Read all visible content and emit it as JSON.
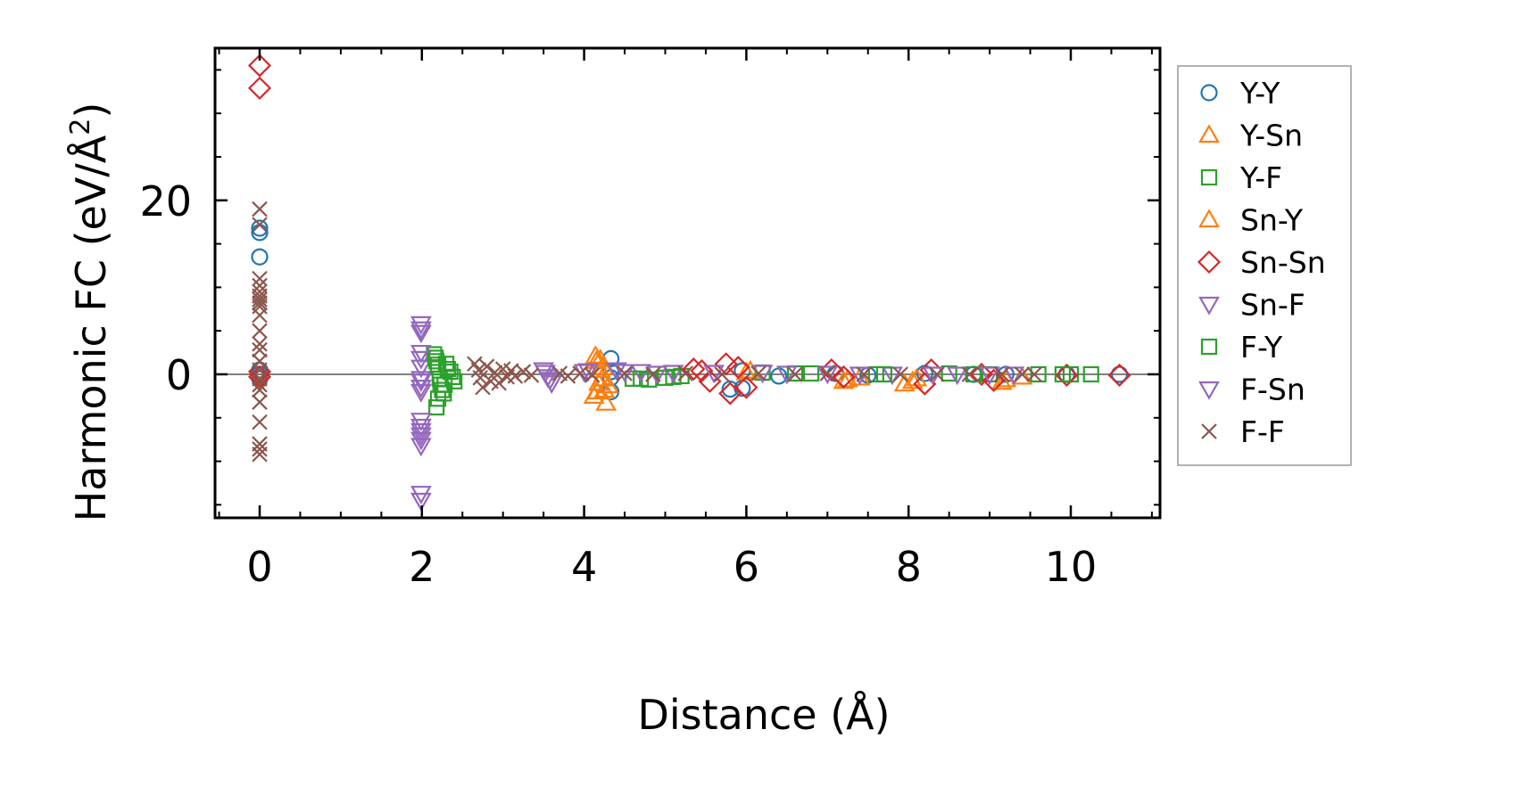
{
  "chart_data": {
    "type": "scatter",
    "title": "",
    "xlabel": "Distance (Å)",
    "ylabel": "Harmonic FC (eV/Å²)",
    "ylabel_parts": {
      "base": "Harmonic FC (eV/Å",
      "sup": "2",
      "close": ")"
    },
    "xlim": [
      -0.55,
      11.1
    ],
    "ylim": [
      -16.5,
      37.5
    ],
    "x_ticks": [
      0,
      2,
      4,
      6,
      8,
      10
    ],
    "x_tick_labels": [
      "0",
      "2",
      "4",
      "6",
      "8",
      "10"
    ],
    "y_ticks": [
      0,
      20
    ],
    "y_tick_labels": [
      "0",
      "20"
    ],
    "zero_line": true,
    "grid": false,
    "legend_position": "outside-right",
    "series": [
      {
        "name": "Y-Y",
        "marker": "circle",
        "filled": false,
        "color": "#1f77b4",
        "points": [
          [
            0,
            16.8
          ],
          [
            0,
            16.3
          ],
          [
            0,
            13.5
          ],
          [
            0,
            0.5
          ],
          [
            0,
            -0.5
          ],
          [
            0,
            0
          ],
          [
            4.33,
            1.8
          ],
          [
            4.33,
            -2.0
          ],
          [
            4.33,
            0.3
          ],
          [
            4.33,
            -0.4
          ],
          [
            5.8,
            -1.7
          ],
          [
            5.95,
            -1.6
          ],
          [
            5.95,
            0.4
          ],
          [
            6.4,
            -0.2
          ],
          [
            7.1,
            0.1
          ],
          [
            7.5,
            -0.1
          ],
          [
            8.2,
            0.1
          ],
          [
            8.8,
            0
          ],
          [
            9.2,
            0
          ],
          [
            9.95,
            0
          ],
          [
            10.6,
            0
          ]
        ]
      },
      {
        "name": "Y-Sn",
        "marker": "triangle-up",
        "filled": false,
        "color": "#ff7f0e",
        "points": [
          [
            4.15,
            1.5
          ],
          [
            4.18,
            -1.0
          ],
          [
            4.12,
            -2.5
          ],
          [
            4.27,
            -3.3
          ],
          [
            4.2,
            0.5
          ],
          [
            4.22,
            -0.5
          ],
          [
            4.25,
            -1.8
          ],
          [
            6.0,
            0.2
          ],
          [
            7.2,
            -0.8
          ],
          [
            7.4,
            -0.4
          ],
          [
            7.95,
            -1.1
          ],
          [
            8.1,
            -0.5
          ],
          [
            9.15,
            -0.9
          ],
          [
            9.4,
            -0.3
          ]
        ]
      },
      {
        "name": "Y-F",
        "marker": "square",
        "filled": false,
        "color": "#2ca02c",
        "points": [
          [
            2.15,
            2.3
          ],
          [
            2.18,
            1.5
          ],
          [
            2.2,
            0.8
          ],
          [
            2.22,
            -0.5
          ],
          [
            2.25,
            -1.8
          ],
          [
            2.2,
            -2.8
          ],
          [
            2.18,
            -3.8
          ],
          [
            2.3,
            1.2
          ],
          [
            2.35,
            0.3
          ],
          [
            2.4,
            -0.8
          ],
          [
            2.28,
            -1.2
          ],
          [
            4.6,
            -0.5
          ],
          [
            4.8,
            -0.6
          ],
          [
            5.0,
            -0.4
          ],
          [
            5.2,
            -0.2
          ],
          [
            6.2,
            0.2
          ],
          [
            6.8,
            0.1
          ],
          [
            7.6,
            0
          ],
          [
            8.5,
            0.1
          ],
          [
            9.0,
            0
          ],
          [
            9.6,
            0
          ],
          [
            10.0,
            0
          ],
          [
            10.25,
            0
          ]
        ]
      },
      {
        "name": "Sn-Y",
        "marker": "triangle-up",
        "filled": false,
        "color": "#ff7f0e",
        "points": [
          [
            4.14,
            2.1
          ],
          [
            4.2,
            1.7
          ],
          [
            4.16,
            -2.0
          ],
          [
            4.24,
            0.8
          ],
          [
            4.3,
            -1.3
          ],
          [
            6.05,
            0.4
          ],
          [
            7.25,
            -0.6
          ],
          [
            8.05,
            -0.8
          ],
          [
            9.2,
            -0.6
          ]
        ]
      },
      {
        "name": "Sn-Sn",
        "marker": "diamond",
        "filled": false,
        "color": "#d62728",
        "points": [
          [
            0,
            35.5
          ],
          [
            0,
            32.9
          ],
          [
            0,
            0.3
          ],
          [
            0,
            -0.3
          ],
          [
            5.35,
            0.6
          ],
          [
            5.45,
            0.4
          ],
          [
            5.55,
            -0.8
          ],
          [
            5.75,
            1.2
          ],
          [
            5.8,
            -2.2
          ],
          [
            5.9,
            0.8
          ],
          [
            6.0,
            -1.5
          ],
          [
            7.05,
            0.5
          ],
          [
            7.2,
            -0.3
          ],
          [
            8.2,
            -1.1
          ],
          [
            8.28,
            0.5
          ],
          [
            8.9,
            0
          ],
          [
            9.05,
            -0.7
          ],
          [
            9.95,
            -0.1
          ],
          [
            10.6,
            -0.1
          ]
        ]
      },
      {
        "name": "Sn-F",
        "marker": "triangle-down",
        "filled": false,
        "color": "#9467bd",
        "points": [
          [
            1.99,
            5.8
          ],
          [
            1.99,
            5.2
          ],
          [
            1.99,
            1.8
          ],
          [
            1.99,
            0.8
          ],
          [
            1.99,
            -0.5
          ],
          [
            1.99,
            -1.5
          ],
          [
            1.99,
            -5.3
          ],
          [
            1.99,
            -6.5
          ],
          [
            1.99,
            -7.5
          ],
          [
            1.99,
            -8.2
          ],
          [
            1.99,
            -13.7
          ],
          [
            1.99,
            -14.5
          ],
          [
            3.5,
            0.5
          ],
          [
            3.55,
            -0.3
          ],
          [
            3.6,
            -1.0
          ],
          [
            4.0,
            0.3
          ],
          [
            4.4,
            0.5
          ],
          [
            4.7,
            0.3
          ],
          [
            5.1,
            0.2
          ],
          [
            6.2,
            0.2
          ],
          [
            7.0,
            0.1
          ],
          [
            7.8,
            0
          ],
          [
            8.6,
            0
          ],
          [
            9.3,
            0
          ]
        ]
      },
      {
        "name": "F-Y",
        "marker": "square",
        "filled": false,
        "color": "#2ca02c",
        "points": [
          [
            2.17,
            1.9
          ],
          [
            2.2,
            1.1
          ],
          [
            2.23,
            -1.2
          ],
          [
            2.27,
            -2.2
          ],
          [
            2.32,
            0.6
          ],
          [
            2.38,
            -0.3
          ],
          [
            4.7,
            -0.5
          ],
          [
            5.1,
            -0.3
          ],
          [
            6.6,
            0.1
          ],
          [
            7.7,
            0
          ],
          [
            8.8,
            0
          ],
          [
            9.9,
            0
          ]
        ]
      },
      {
        "name": "F-Sn",
        "marker": "triangle-down",
        "filled": false,
        "color": "#9467bd",
        "points": [
          [
            1.99,
            4.8
          ],
          [
            1.99,
            2.5
          ],
          [
            1.99,
            -0.8
          ],
          [
            1.99,
            -2.0
          ],
          [
            1.99,
            -6.0
          ],
          [
            1.99,
            -7.0
          ],
          [
            3.52,
            0.2
          ],
          [
            3.58,
            -0.6
          ],
          [
            4.05,
            0.4
          ],
          [
            4.5,
            0.3
          ],
          [
            4.9,
            0.1
          ],
          [
            5.6,
            0.2
          ],
          [
            6.5,
            0.1
          ],
          [
            7.4,
            0
          ],
          [
            8.3,
            0
          ],
          [
            9.0,
            0
          ]
        ]
      },
      {
        "name": "F-F",
        "marker": "x",
        "filled": false,
        "color": "#8c564b",
        "points": [
          [
            0,
            19.0
          ],
          [
            0,
            17.2
          ],
          [
            0,
            11.0
          ],
          [
            0,
            10.2
          ],
          [
            0,
            9.5
          ],
          [
            0,
            9.0
          ],
          [
            0,
            8.6
          ],
          [
            0,
            8.2
          ],
          [
            0,
            7.8
          ],
          [
            0,
            6.8
          ],
          [
            0,
            5.0
          ],
          [
            0,
            3.5
          ],
          [
            0,
            2.8
          ],
          [
            0,
            1.5
          ],
          [
            0,
            0.5
          ],
          [
            0,
            -0.5
          ],
          [
            0,
            -1.2
          ],
          [
            0,
            -1.8
          ],
          [
            0,
            -3.2
          ],
          [
            0,
            -5.5
          ],
          [
            0,
            -8.0
          ],
          [
            0,
            -8.6
          ],
          [
            0,
            -9.2
          ],
          [
            2.65,
            1.2
          ],
          [
            2.7,
            0.5
          ],
          [
            2.72,
            -0.4
          ],
          [
            2.75,
            -1.5
          ],
          [
            2.8,
            0.9
          ],
          [
            2.85,
            -0.8
          ],
          [
            2.9,
            0.2
          ],
          [
            2.95,
            -1.0
          ],
          [
            3.0,
            0.6
          ],
          [
            3.05,
            -0.3
          ],
          [
            3.1,
            0.4
          ],
          [
            3.15,
            -0.2
          ],
          [
            3.25,
            0.3
          ],
          [
            3.35,
            -0.1
          ],
          [
            3.7,
            0.1
          ],
          [
            3.8,
            -0.2
          ],
          [
            3.95,
            0.1
          ],
          [
            4.1,
            -0.1
          ],
          [
            4.5,
            0.1
          ],
          [
            4.85,
            0
          ],
          [
            5.25,
            0.1
          ],
          [
            5.7,
            0
          ],
          [
            6.15,
            0.1
          ],
          [
            6.6,
            0
          ],
          [
            7.0,
            0.1
          ],
          [
            7.45,
            0
          ],
          [
            7.9,
            0
          ],
          [
            8.35,
            0
          ],
          [
            8.75,
            0
          ],
          [
            9.15,
            0
          ],
          [
            9.4,
            0
          ],
          [
            9.55,
            0
          ]
        ]
      }
    ]
  }
}
